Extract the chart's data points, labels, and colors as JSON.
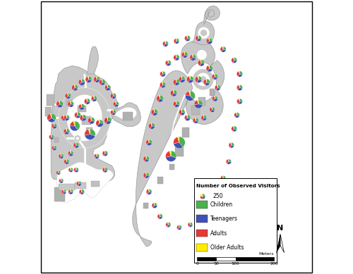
{
  "background_color": "#ffffff",
  "park_gray": "#c8c8c8",
  "park_gray_dark": "#aaaaaa",
  "road_white": "#ffffff",
  "block_gray": "#b5b5b5",
  "legend_title": "Number of Observed Visitors",
  "legend_items": [
    {
      "label": "250",
      "type": "pie"
    },
    {
      "label": "Children",
      "color": "#4caf50"
    },
    {
      "label": "Teenagers",
      "color": "#3f51b5"
    },
    {
      "label": "Adults",
      "color": "#e53935"
    },
    {
      "label": "Older Adults",
      "color": "#ffee00"
    }
  ],
  "scale_label": "Meters",
  "scale_ticks": [
    "0",
    "50",
    "100",
    "200"
  ],
  "north_label": "N",
  "colors": {
    "children": "#4caf50",
    "teenagers": "#3f51b5",
    "adults": "#e53935",
    "older_adults": "#ffee00"
  },
  "REF_COUNT": 250,
  "REF_RAD": 0.018,
  "left_pies": [
    [
      0.075,
      0.62,
      120,
      [
        0.33,
        0.3,
        0.32,
        0.05
      ]
    ],
    [
      0.09,
      0.57,
      80,
      [
        0.3,
        0.32,
        0.33,
        0.05
      ]
    ],
    [
      0.055,
      0.54,
      70,
      [
        0.28,
        0.35,
        0.32,
        0.05
      ]
    ],
    [
      0.045,
      0.5,
      65,
      [
        0.32,
        0.28,
        0.35,
        0.05
      ]
    ],
    [
      0.055,
      0.46,
      60,
      [
        0.3,
        0.32,
        0.33,
        0.05
      ]
    ],
    [
      0.08,
      0.43,
      65,
      [
        0.28,
        0.3,
        0.37,
        0.05
      ]
    ],
    [
      0.1,
      0.41,
      70,
      [
        0.32,
        0.28,
        0.35,
        0.05
      ]
    ],
    [
      0.115,
      0.44,
      75,
      [
        0.3,
        0.35,
        0.3,
        0.05
      ]
    ],
    [
      0.135,
      0.47,
      80,
      [
        0.28,
        0.3,
        0.37,
        0.05
      ]
    ],
    [
      0.1,
      0.52,
      90,
      [
        0.33,
        0.32,
        0.3,
        0.05
      ]
    ],
    [
      0.1,
      0.57,
      85,
      [
        0.3,
        0.32,
        0.33,
        0.05
      ]
    ],
    [
      0.115,
      0.62,
      95,
      [
        0.28,
        0.3,
        0.37,
        0.05
      ]
    ],
    [
      0.105,
      0.65,
      90,
      [
        0.32,
        0.28,
        0.35,
        0.05
      ]
    ],
    [
      0.13,
      0.68,
      100,
      [
        0.3,
        0.3,
        0.35,
        0.05
      ]
    ],
    [
      0.155,
      0.7,
      110,
      [
        0.25,
        0.38,
        0.32,
        0.05
      ]
    ],
    [
      0.18,
      0.71,
      105,
      [
        0.3,
        0.32,
        0.33,
        0.05
      ]
    ],
    [
      0.21,
      0.71,
      100,
      [
        0.28,
        0.3,
        0.37,
        0.05
      ]
    ],
    [
      0.23,
      0.7,
      95,
      [
        0.32,
        0.28,
        0.35,
        0.05
      ]
    ],
    [
      0.25,
      0.68,
      90,
      [
        0.3,
        0.35,
        0.3,
        0.05
      ]
    ],
    [
      0.27,
      0.65,
      85,
      [
        0.28,
        0.3,
        0.37,
        0.05
      ]
    ],
    [
      0.28,
      0.62,
      80,
      [
        0.3,
        0.32,
        0.33,
        0.05
      ]
    ],
    [
      0.27,
      0.59,
      75,
      [
        0.32,
        0.28,
        0.35,
        0.05
      ]
    ],
    [
      0.25,
      0.56,
      130,
      [
        0.3,
        0.3,
        0.35,
        0.05
      ]
    ],
    [
      0.22,
      0.55,
      140,
      [
        0.25,
        0.38,
        0.32,
        0.05
      ]
    ],
    [
      0.19,
      0.56,
      120,
      [
        0.3,
        0.32,
        0.33,
        0.05
      ]
    ],
    [
      0.16,
      0.57,
      110,
      [
        0.28,
        0.3,
        0.37,
        0.05
      ]
    ],
    [
      0.14,
      0.58,
      100,
      [
        0.32,
        0.28,
        0.35,
        0.05
      ]
    ],
    [
      0.155,
      0.61,
      95,
      [
        0.3,
        0.35,
        0.3,
        0.05
      ]
    ],
    [
      0.175,
      0.63,
      90,
      [
        0.28,
        0.3,
        0.37,
        0.05
      ]
    ],
    [
      0.2,
      0.64,
      85,
      [
        0.3,
        0.32,
        0.33,
        0.05
      ]
    ],
    [
      0.13,
      0.54,
      250,
      [
        0.4,
        0.35,
        0.2,
        0.05
      ]
    ],
    [
      0.185,
      0.51,
      300,
      [
        0.3,
        0.42,
        0.23,
        0.05
      ]
    ],
    [
      0.045,
      0.57,
      200,
      [
        0.35,
        0.3,
        0.3,
        0.05
      ]
    ],
    [
      0.135,
      0.38,
      60,
      [
        0.3,
        0.32,
        0.33,
        0.05
      ]
    ],
    [
      0.145,
      0.33,
      65,
      [
        0.28,
        0.3,
        0.37,
        0.05
      ]
    ],
    [
      0.155,
      0.3,
      70,
      [
        0.32,
        0.28,
        0.35,
        0.05
      ]
    ],
    [
      0.115,
      0.3,
      65,
      [
        0.3,
        0.35,
        0.3,
        0.05
      ]
    ],
    [
      0.09,
      0.3,
      60,
      [
        0.28,
        0.3,
        0.37,
        0.05
      ]
    ],
    [
      0.08,
      0.34,
      55,
      [
        0.3,
        0.32,
        0.33,
        0.05
      ]
    ],
    [
      0.07,
      0.37,
      50,
      [
        0.32,
        0.28,
        0.35,
        0.05
      ]
    ],
    [
      0.115,
      0.38,
      55,
      [
        0.3,
        0.3,
        0.35,
        0.05
      ]
    ],
    [
      0.24,
      0.44,
      75,
      [
        0.28,
        0.3,
        0.37,
        0.05
      ]
    ],
    [
      0.24,
      0.38,
      70,
      [
        0.32,
        0.28,
        0.35,
        0.05
      ]
    ],
    [
      0.21,
      0.43,
      65,
      [
        0.3,
        0.35,
        0.3,
        0.05
      ]
    ]
  ],
  "right_pies": [
    [
      0.46,
      0.84,
      80,
      [
        0.3,
        0.32,
        0.33,
        0.05
      ]
    ],
    [
      0.5,
      0.85,
      75,
      [
        0.28,
        0.3,
        0.37,
        0.05
      ]
    ],
    [
      0.54,
      0.86,
      85,
      [
        0.32,
        0.28,
        0.35,
        0.05
      ]
    ],
    [
      0.58,
      0.86,
      90,
      [
        0.3,
        0.3,
        0.35,
        0.05
      ]
    ],
    [
      0.62,
      0.85,
      95,
      [
        0.25,
        0.38,
        0.32,
        0.05
      ]
    ],
    [
      0.67,
      0.82,
      85,
      [
        0.3,
        0.32,
        0.33,
        0.05
      ]
    ],
    [
      0.71,
      0.78,
      80,
      [
        0.28,
        0.3,
        0.37,
        0.05
      ]
    ],
    [
      0.73,
      0.73,
      90,
      [
        0.32,
        0.28,
        0.35,
        0.05
      ]
    ],
    [
      0.73,
      0.68,
      85,
      [
        0.3,
        0.35,
        0.3,
        0.05
      ]
    ],
    [
      0.73,
      0.63,
      80,
      [
        0.28,
        0.3,
        0.37,
        0.05
      ]
    ],
    [
      0.72,
      0.58,
      75,
      [
        0.3,
        0.32,
        0.33,
        0.05
      ]
    ],
    [
      0.71,
      0.53,
      80,
      [
        0.32,
        0.28,
        0.35,
        0.05
      ]
    ],
    [
      0.7,
      0.47,
      75,
      [
        0.3,
        0.3,
        0.35,
        0.05
      ]
    ],
    [
      0.69,
      0.41,
      70,
      [
        0.25,
        0.38,
        0.32,
        0.05
      ]
    ],
    [
      0.67,
      0.35,
      65,
      [
        0.3,
        0.32,
        0.33,
        0.05
      ]
    ],
    [
      0.65,
      0.29,
      60,
      [
        0.28,
        0.3,
        0.37,
        0.05
      ]
    ],
    [
      0.62,
      0.24,
      55,
      [
        0.32,
        0.28,
        0.35,
        0.05
      ]
    ],
    [
      0.59,
      0.21,
      55,
      [
        0.3,
        0.35,
        0.3,
        0.05
      ]
    ],
    [
      0.55,
      0.18,
      60,
      [
        0.28,
        0.3,
        0.37,
        0.05
      ]
    ],
    [
      0.51,
      0.17,
      60,
      [
        0.3,
        0.32,
        0.33,
        0.05
      ]
    ],
    [
      0.47,
      0.18,
      65,
      [
        0.32,
        0.28,
        0.35,
        0.05
      ]
    ],
    [
      0.44,
      0.21,
      70,
      [
        0.3,
        0.3,
        0.35,
        0.05
      ]
    ],
    [
      0.42,
      0.25,
      75,
      [
        0.25,
        0.38,
        0.32,
        0.05
      ]
    ],
    [
      0.4,
      0.3,
      80,
      [
        0.3,
        0.32,
        0.33,
        0.05
      ]
    ],
    [
      0.39,
      0.36,
      85,
      [
        0.28,
        0.3,
        0.37,
        0.05
      ]
    ],
    [
      0.39,
      0.42,
      90,
      [
        0.32,
        0.28,
        0.35,
        0.05
      ]
    ],
    [
      0.4,
      0.48,
      95,
      [
        0.3,
        0.35,
        0.3,
        0.05
      ]
    ],
    [
      0.41,
      0.54,
      100,
      [
        0.28,
        0.3,
        0.37,
        0.05
      ]
    ],
    [
      0.42,
      0.59,
      110,
      [
        0.3,
        0.32,
        0.33,
        0.05
      ]
    ],
    [
      0.44,
      0.64,
      120,
      [
        0.32,
        0.28,
        0.35,
        0.05
      ]
    ],
    [
      0.45,
      0.69,
      90,
      [
        0.3,
        0.3,
        0.35,
        0.05
      ]
    ],
    [
      0.45,
      0.73,
      80,
      [
        0.25,
        0.38,
        0.32,
        0.05
      ]
    ],
    [
      0.47,
      0.77,
      85,
      [
        0.3,
        0.32,
        0.33,
        0.05
      ]
    ],
    [
      0.5,
      0.79,
      90,
      [
        0.28,
        0.3,
        0.37,
        0.05
      ]
    ],
    [
      0.53,
      0.8,
      95,
      [
        0.32,
        0.28,
        0.35,
        0.05
      ]
    ],
    [
      0.56,
      0.79,
      100,
      [
        0.3,
        0.35,
        0.3,
        0.05
      ]
    ],
    [
      0.59,
      0.77,
      105,
      [
        0.28,
        0.3,
        0.37,
        0.05
      ]
    ],
    [
      0.62,
      0.75,
      110,
      [
        0.3,
        0.32,
        0.33,
        0.05
      ]
    ],
    [
      0.64,
      0.72,
      90,
      [
        0.32,
        0.28,
        0.35,
        0.05
      ]
    ],
    [
      0.65,
      0.68,
      85,
      [
        0.3,
        0.3,
        0.35,
        0.05
      ]
    ],
    [
      0.64,
      0.64,
      80,
      [
        0.25,
        0.38,
        0.32,
        0.05
      ]
    ],
    [
      0.63,
      0.6,
      75,
      [
        0.3,
        0.32,
        0.33,
        0.05
      ]
    ],
    [
      0.6,
      0.57,
      80,
      [
        0.28,
        0.3,
        0.37,
        0.05
      ]
    ],
    [
      0.57,
      0.56,
      85,
      [
        0.32,
        0.28,
        0.35,
        0.05
      ]
    ],
    [
      0.54,
      0.57,
      90,
      [
        0.3,
        0.35,
        0.3,
        0.05
      ]
    ],
    [
      0.52,
      0.59,
      95,
      [
        0.28,
        0.3,
        0.37,
        0.05
      ]
    ],
    [
      0.5,
      0.62,
      100,
      [
        0.3,
        0.32,
        0.33,
        0.05
      ]
    ],
    [
      0.49,
      0.66,
      110,
      [
        0.32,
        0.28,
        0.35,
        0.05
      ]
    ],
    [
      0.5,
      0.7,
      105,
      [
        0.3,
        0.3,
        0.35,
        0.05
      ]
    ],
    [
      0.52,
      0.71,
      100,
      [
        0.25,
        0.38,
        0.32,
        0.05
      ]
    ],
    [
      0.55,
      0.71,
      120,
      [
        0.3,
        0.32,
        0.33,
        0.05
      ]
    ],
    [
      0.58,
      0.71,
      115,
      [
        0.28,
        0.3,
        0.37,
        0.05
      ]
    ],
    [
      0.61,
      0.7,
      110,
      [
        0.32,
        0.28,
        0.35,
        0.05
      ]
    ],
    [
      0.55,
      0.65,
      250,
      [
        0.38,
        0.4,
        0.17,
        0.05
      ]
    ],
    [
      0.58,
      0.62,
      180,
      [
        0.28,
        0.45,
        0.22,
        0.05
      ]
    ],
    [
      0.51,
      0.48,
      350,
      [
        0.4,
        0.32,
        0.23,
        0.05
      ]
    ],
    [
      0.48,
      0.43,
      300,
      [
        0.3,
        0.42,
        0.23,
        0.05
      ]
    ]
  ]
}
